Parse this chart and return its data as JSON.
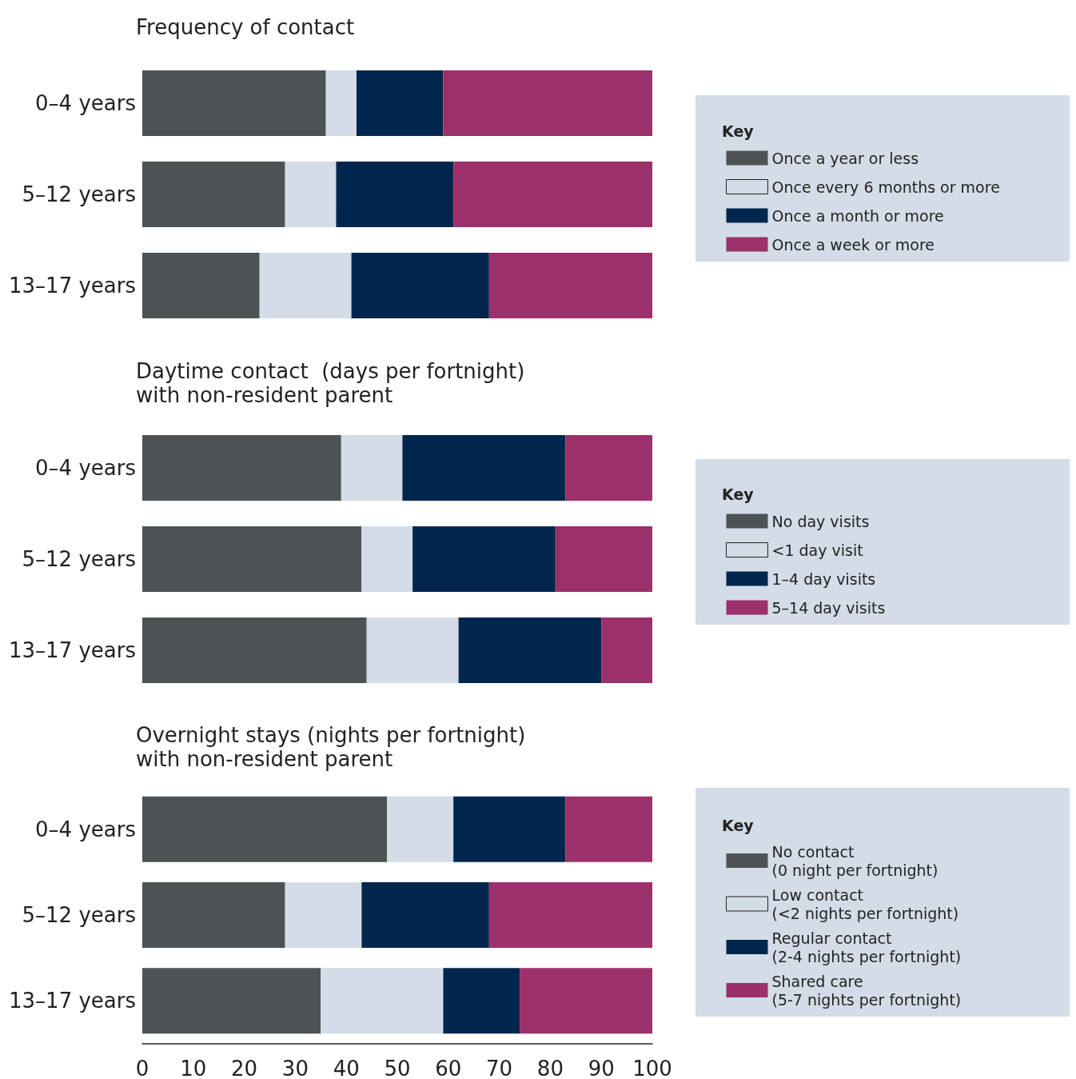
{
  "chart_data": [
    {
      "type": "bar",
      "orientation": "horizontal",
      "stacked": true,
      "title": "Frequency of contact",
      "legend_title": "Key",
      "legend": "right",
      "grid": false,
      "tick_labels": "y",
      "categories": [
        "0–4 years",
        "5–12 years",
        "13–17 years"
      ],
      "xlim": [
        0,
        100
      ],
      "xticks": [
        0,
        10,
        20,
        30,
        40,
        50,
        60,
        70,
        80,
        90,
        100
      ],
      "series": [
        {
          "name": "Once a year or less",
          "color": "#4d5255",
          "values": [
            36,
            28,
            23
          ]
        },
        {
          "name": "Once every 6 months or more",
          "color": "#d3dce7",
          "values": [
            6,
            10,
            18
          ]
        },
        {
          "name": "Once a month or more",
          "color": "#00264d",
          "values": [
            17,
            23,
            27
          ]
        },
        {
          "name": "Once a week or more",
          "color": "#9c306b",
          "values": [
            41,
            39,
            32
          ]
        }
      ]
    },
    {
      "type": "bar",
      "orientation": "horizontal",
      "stacked": true,
      "title": "Daytime contact  (days per fortnight)\nwith non-resident parent",
      "legend_title": "Key",
      "legend": "right",
      "grid": false,
      "tick_labels": "y",
      "categories": [
        "0–4 years",
        "5–12 years",
        "13–17 years"
      ],
      "xlim": [
        0,
        100
      ],
      "xticks": [
        0,
        10,
        20,
        30,
        40,
        50,
        60,
        70,
        80,
        90,
        100
      ],
      "series": [
        {
          "name": "No day visits",
          "color": "#4d5255",
          "values": [
            39,
            43,
            44
          ]
        },
        {
          "name": "<1 day visit",
          "color": "#d3dce7",
          "values": [
            12,
            10,
            18
          ]
        },
        {
          "name": "1–4 day visits",
          "color": "#00264d",
          "values": [
            32,
            28,
            28
          ]
        },
        {
          "name": "5–14 day visits",
          "color": "#9c306b",
          "values": [
            17,
            19,
            10
          ]
        }
      ]
    },
    {
      "type": "bar",
      "orientation": "horizontal",
      "stacked": true,
      "title": "Overnight stays (nights per fortnight)\nwith non-resident parent",
      "legend_title": "Key",
      "legend": "right",
      "grid": false,
      "categories": [
        "0–4 years",
        "5–12 years",
        "13–17 years"
      ],
      "xlim": [
        0,
        100
      ],
      "xticks": [
        0,
        10,
        20,
        30,
        40,
        50,
        60,
        70,
        80,
        90,
        100
      ],
      "series": [
        {
          "name": "No contact\n(0 night per fortnight)",
          "color": "#4d5255",
          "values": [
            48,
            28,
            35
          ]
        },
        {
          "name": "Low contact\n(<2 nights per fortnight)",
          "color": "#d3dce7",
          "values": [
            13,
            15,
            24
          ]
        },
        {
          "name": "Regular contact\n(2-4 nights per fortnight)",
          "color": "#00264d",
          "values": [
            22,
            25,
            15
          ]
        },
        {
          "name": "Shared care\n(5-7 nights per fortnight)",
          "color": "#9c306b",
          "values": [
            17,
            32,
            26
          ]
        }
      ]
    }
  ]
}
